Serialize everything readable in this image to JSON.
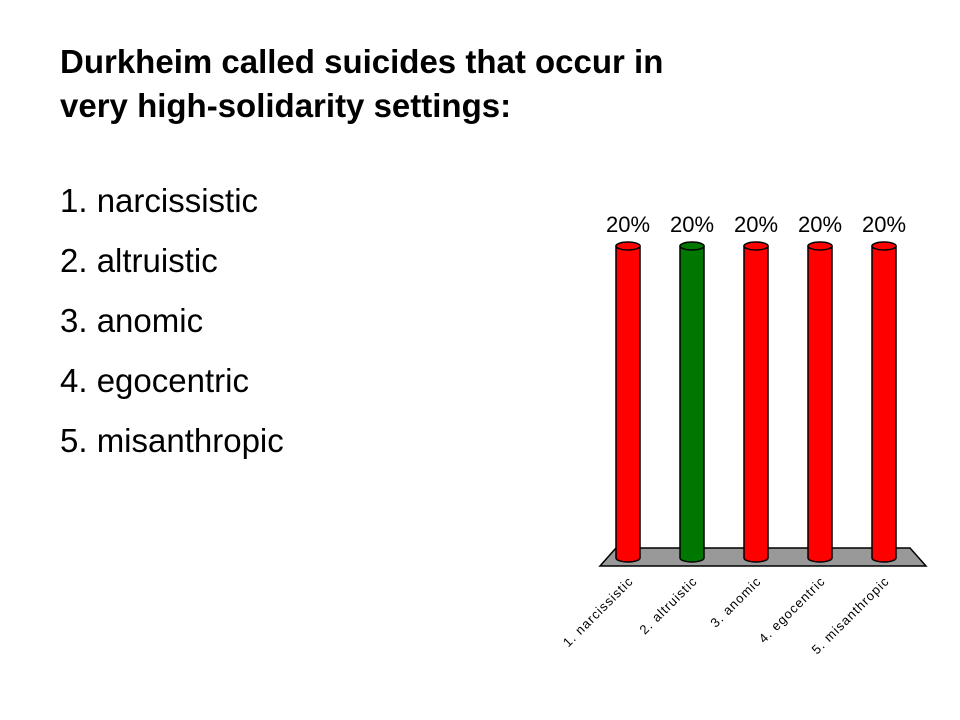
{
  "slide": {
    "question": {
      "line1": "Durkheim called suicides that occur in",
      "line2": "very high-solidarity settings:"
    },
    "answers": [
      "1. narcissistic",
      "2. altruistic",
      "3. anomic",
      "4. egocentric",
      "5. misanthropic"
    ]
  },
  "chart_data": {
    "type": "bar",
    "categories": [
      "1. narcissistic",
      "2. altruistic",
      "3. anomic",
      "4. egocentric",
      "5. misanthropic"
    ],
    "values": [
      20,
      20,
      20,
      20,
      20
    ],
    "value_labels": [
      "20%",
      "20%",
      "20%",
      "20%",
      "20%"
    ],
    "ylim": [
      0,
      20
    ],
    "grid": false,
    "bar_colors": [
      "#ff0000",
      "#007700",
      "#ff0000",
      "#ff0000",
      "#ff0000"
    ],
    "floor_color": "#999999"
  }
}
